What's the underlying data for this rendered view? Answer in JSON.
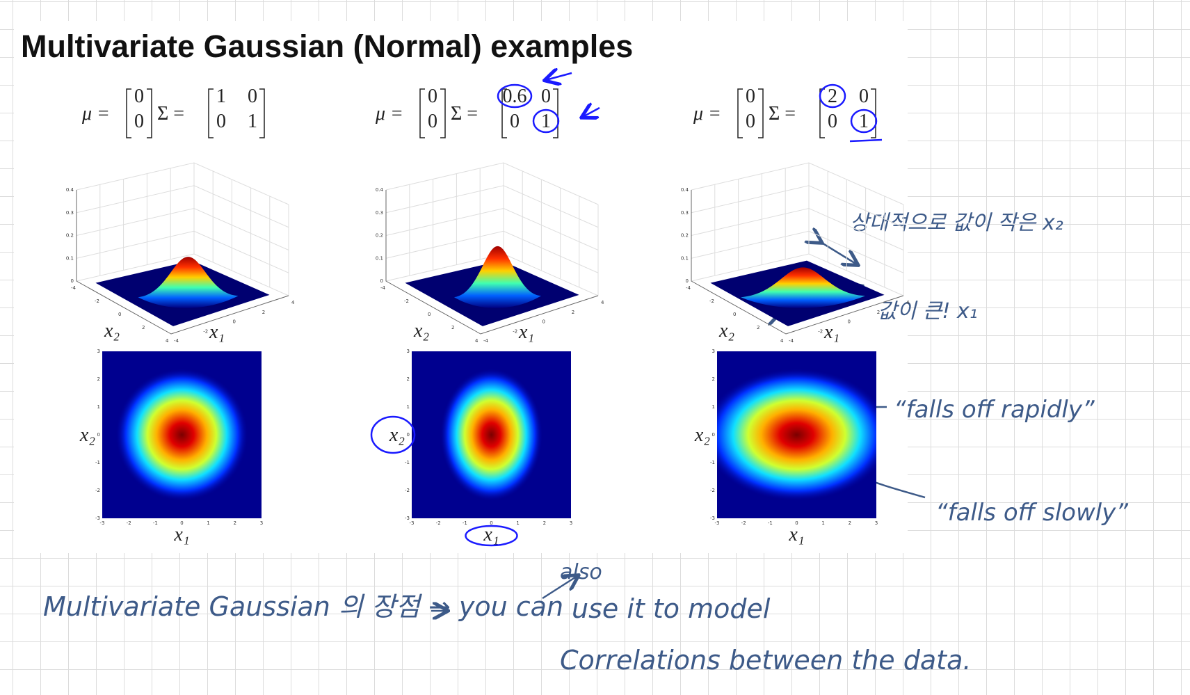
{
  "title": "Multivariate Gaussian (Normal) examples",
  "panels": [
    {
      "mu_label": "μ =",
      "mu": [
        0,
        0
      ],
      "sigma_label": "Σ =",
      "sigma": [
        [
          1,
          0
        ],
        [
          0,
          1
        ]
      ],
      "surface_x1": "x₁",
      "surface_x2": "x₂",
      "heatmap_x1": "x₁",
      "heatmap_x2": "x₂"
    },
    {
      "mu_label": "μ =",
      "mu": [
        0,
        0
      ],
      "sigma_label": "Σ =",
      "sigma": [
        [
          0.6,
          0
        ],
        [
          0,
          1
        ]
      ],
      "surface_x1": "x₁",
      "surface_x2": "x₂",
      "heatmap_x1": "x₁",
      "heatmap_x2": "x₂"
    },
    {
      "mu_label": "μ =",
      "mu": [
        0,
        0
      ],
      "sigma_label": "Σ =",
      "sigma": [
        [
          2,
          0
        ],
        [
          0,
          1
        ]
      ],
      "surface_x1": "x₁",
      "surface_x2": "x₂",
      "heatmap_x1": "x₁",
      "heatmap_x2": "x₂"
    }
  ],
  "surface_zticks": [
    0,
    0.1,
    0.2,
    0.3,
    0.4
  ],
  "surface_axis_ticks": [
    -4,
    -2,
    0,
    2,
    4
  ],
  "heatmap_ticks": [
    -3,
    -2,
    -1,
    0,
    1,
    2,
    3
  ],
  "annotations": {
    "small_x2": "상대적으로 값이 작은 x₂",
    "large_x1": "값이 큰! x₁",
    "rapidly": "“falls off rapidly”",
    "slowly": "“falls off slowly”",
    "note_line1": "Multivariate Gaussian 의 장점 → you can",
    "note_also": "also",
    "note_line1_end": "use it to model",
    "note_line2": "Correlations between the data."
  }
}
